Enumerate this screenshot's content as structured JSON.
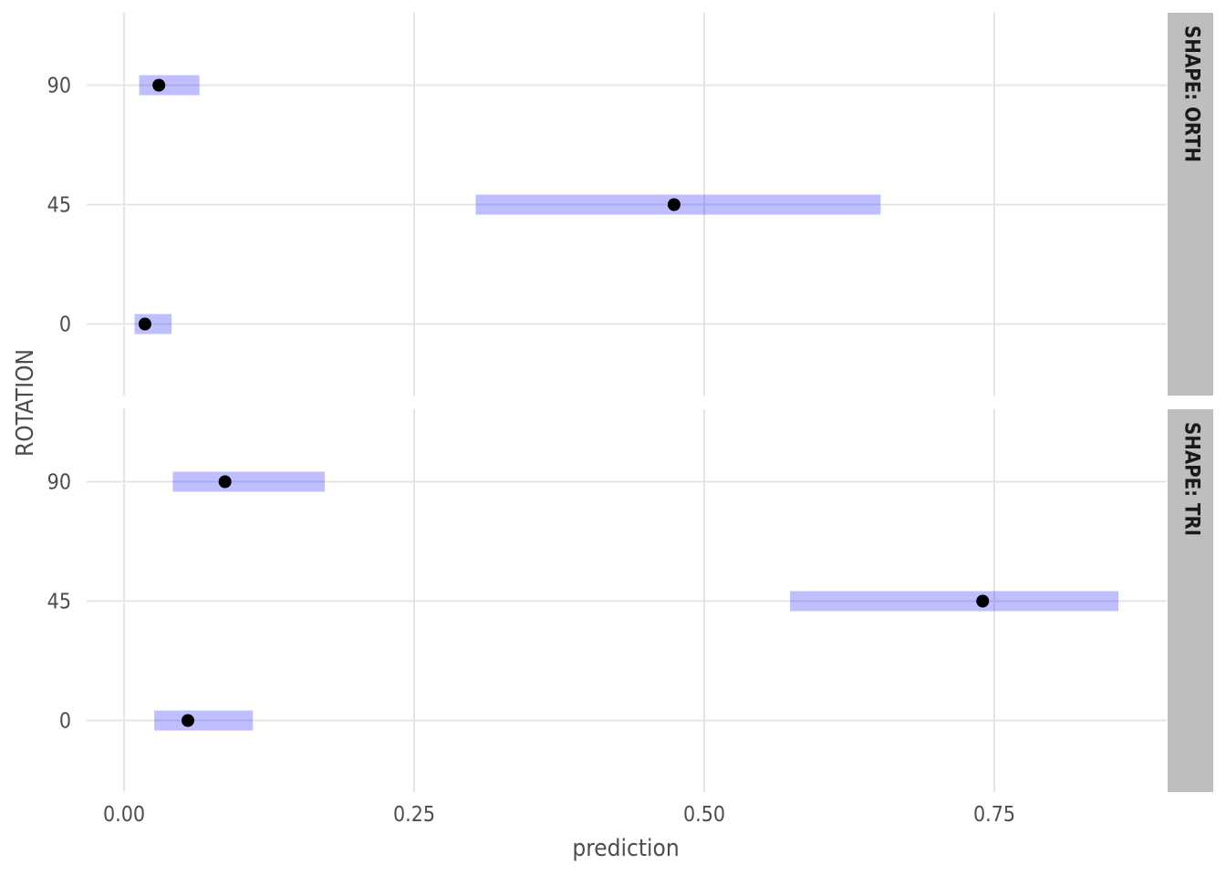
{
  "chart_data": {
    "type": "scatter",
    "xlabel": "prediction",
    "ylabel": "ROTATION",
    "x_ticks": [
      "0.00",
      "0.25",
      "0.50",
      "0.75"
    ],
    "x_tick_values": [
      0,
      0.25,
      0.5,
      0.75
    ],
    "xlim": [
      -0.032,
      0.898
    ],
    "y_categories": [
      "0",
      "45",
      "90"
    ],
    "colors": {
      "interval": "#0000ff",
      "interval_opacity": 0.25,
      "point": "#000000",
      "grid": "#e5e5e5",
      "strip": "#bebebe"
    },
    "grid": true,
    "panels": [
      {
        "strip": "SHAPE: ORTH",
        "rows": [
          {
            "rotation": "0",
            "estimate": 0.018,
            "lower": 0.009,
            "upper": 0.041
          },
          {
            "rotation": "45",
            "estimate": 0.474,
            "lower": 0.303,
            "upper": 0.652
          },
          {
            "rotation": "90",
            "estimate": 0.03,
            "lower": 0.013,
            "upper": 0.065
          }
        ]
      },
      {
        "strip": "SHAPE: TRI",
        "rows": [
          {
            "rotation": "0",
            "estimate": 0.055,
            "lower": 0.026,
            "upper": 0.111
          },
          {
            "rotation": "45",
            "estimate": 0.74,
            "lower": 0.574,
            "upper": 0.857
          },
          {
            "rotation": "90",
            "estimate": 0.087,
            "lower": 0.042,
            "upper": 0.173
          }
        ]
      }
    ]
  }
}
